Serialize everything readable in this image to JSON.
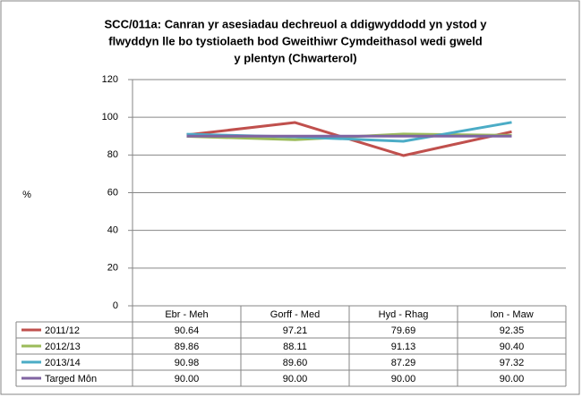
{
  "chart_data": {
    "type": "line",
    "title": [
      "SCC/011a: Canran yr asesiadau dechreuol a ddigwyddodd yn ystod y",
      "flwyddyn lle bo tystiolaeth bod Gweithiwr Cymdeithasol wedi gweld",
      "y plentyn (Chwarterol)"
    ],
    "y_label": "%",
    "categories": [
      "Ebr - Meh",
      "Gorff - Med",
      "Hyd - Rhag",
      "Ion - Maw"
    ],
    "series": [
      {
        "name": "2011/12",
        "color": "#c0504d",
        "values": [
          90.64,
          97.21,
          79.69,
          92.35
        ],
        "value_labels": [
          "90.64",
          "97.21",
          "79.69",
          "92.35"
        ]
      },
      {
        "name": "2012/13",
        "color": "#9bbb59",
        "values": [
          89.86,
          88.11,
          91.13,
          90.4
        ],
        "value_labels": [
          "89.86",
          "88.11",
          "91.13",
          "90.40"
        ]
      },
      {
        "name": "2013/14",
        "color": "#4bacc6",
        "values": [
          90.98,
          89.6,
          87.29,
          97.32
        ],
        "value_labels": [
          "90.98",
          "89.60",
          "87.29",
          "97.32"
        ]
      },
      {
        "name": "Targed Môn",
        "color": "#8064a2",
        "values": [
          90,
          90,
          90,
          90
        ],
        "value_labels": [
          "90.00",
          "90.00",
          "90.00",
          "90.00"
        ]
      }
    ],
    "ylim": [
      0,
      120
    ],
    "yticks": [
      0,
      20,
      40,
      60,
      80,
      100,
      120
    ],
    "grid": true
  }
}
